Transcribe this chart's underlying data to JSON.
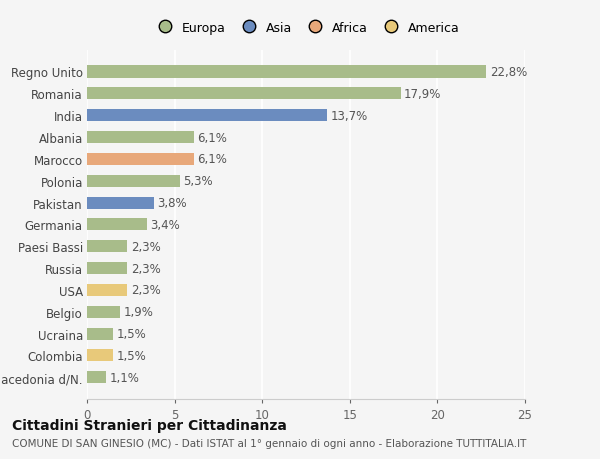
{
  "categories": [
    "Macedonia d/N.",
    "Colombia",
    "Ucraina",
    "Belgio",
    "USA",
    "Russia",
    "Paesi Bassi",
    "Germania",
    "Pakistan",
    "Polonia",
    "Marocco",
    "Albania",
    "India",
    "Romania",
    "Regno Unito"
  ],
  "values": [
    1.1,
    1.5,
    1.5,
    1.9,
    2.3,
    2.3,
    2.3,
    3.4,
    3.8,
    5.3,
    6.1,
    6.1,
    13.7,
    17.9,
    22.8
  ],
  "labels": [
    "1,1%",
    "1,5%",
    "1,5%",
    "1,9%",
    "2,3%",
    "2,3%",
    "2,3%",
    "3,4%",
    "3,8%",
    "5,3%",
    "6,1%",
    "6,1%",
    "13,7%",
    "17,9%",
    "22,8%"
  ],
  "colors": [
    "#a8bc8a",
    "#e8c97a",
    "#a8bc8a",
    "#a8bc8a",
    "#e8c97a",
    "#a8bc8a",
    "#a8bc8a",
    "#a8bc8a",
    "#6b8cbf",
    "#a8bc8a",
    "#e8a87a",
    "#a8bc8a",
    "#6b8cbf",
    "#a8bc8a",
    "#a8bc8a"
  ],
  "legend_labels": [
    "Europa",
    "Asia",
    "Africa",
    "America"
  ],
  "legend_colors": [
    "#a8bc8a",
    "#6b8cbf",
    "#e8a87a",
    "#e8c97a"
  ],
  "xlim": [
    0,
    25
  ],
  "xticks": [
    0,
    5,
    10,
    15,
    20,
    25
  ],
  "title": "Cittadini Stranieri per Cittadinanza",
  "subtitle": "COMUNE DI SAN GINESIO (MC) - Dati ISTAT al 1° gennaio di ogni anno - Elaborazione TUTTITALIA.IT",
  "background_color": "#f5f5f5",
  "bar_height": 0.55,
  "grid_color": "#ffffff",
  "label_fontsize": 8.5,
  "tick_fontsize": 8.5,
  "title_fontsize": 10,
  "subtitle_fontsize": 7.5
}
